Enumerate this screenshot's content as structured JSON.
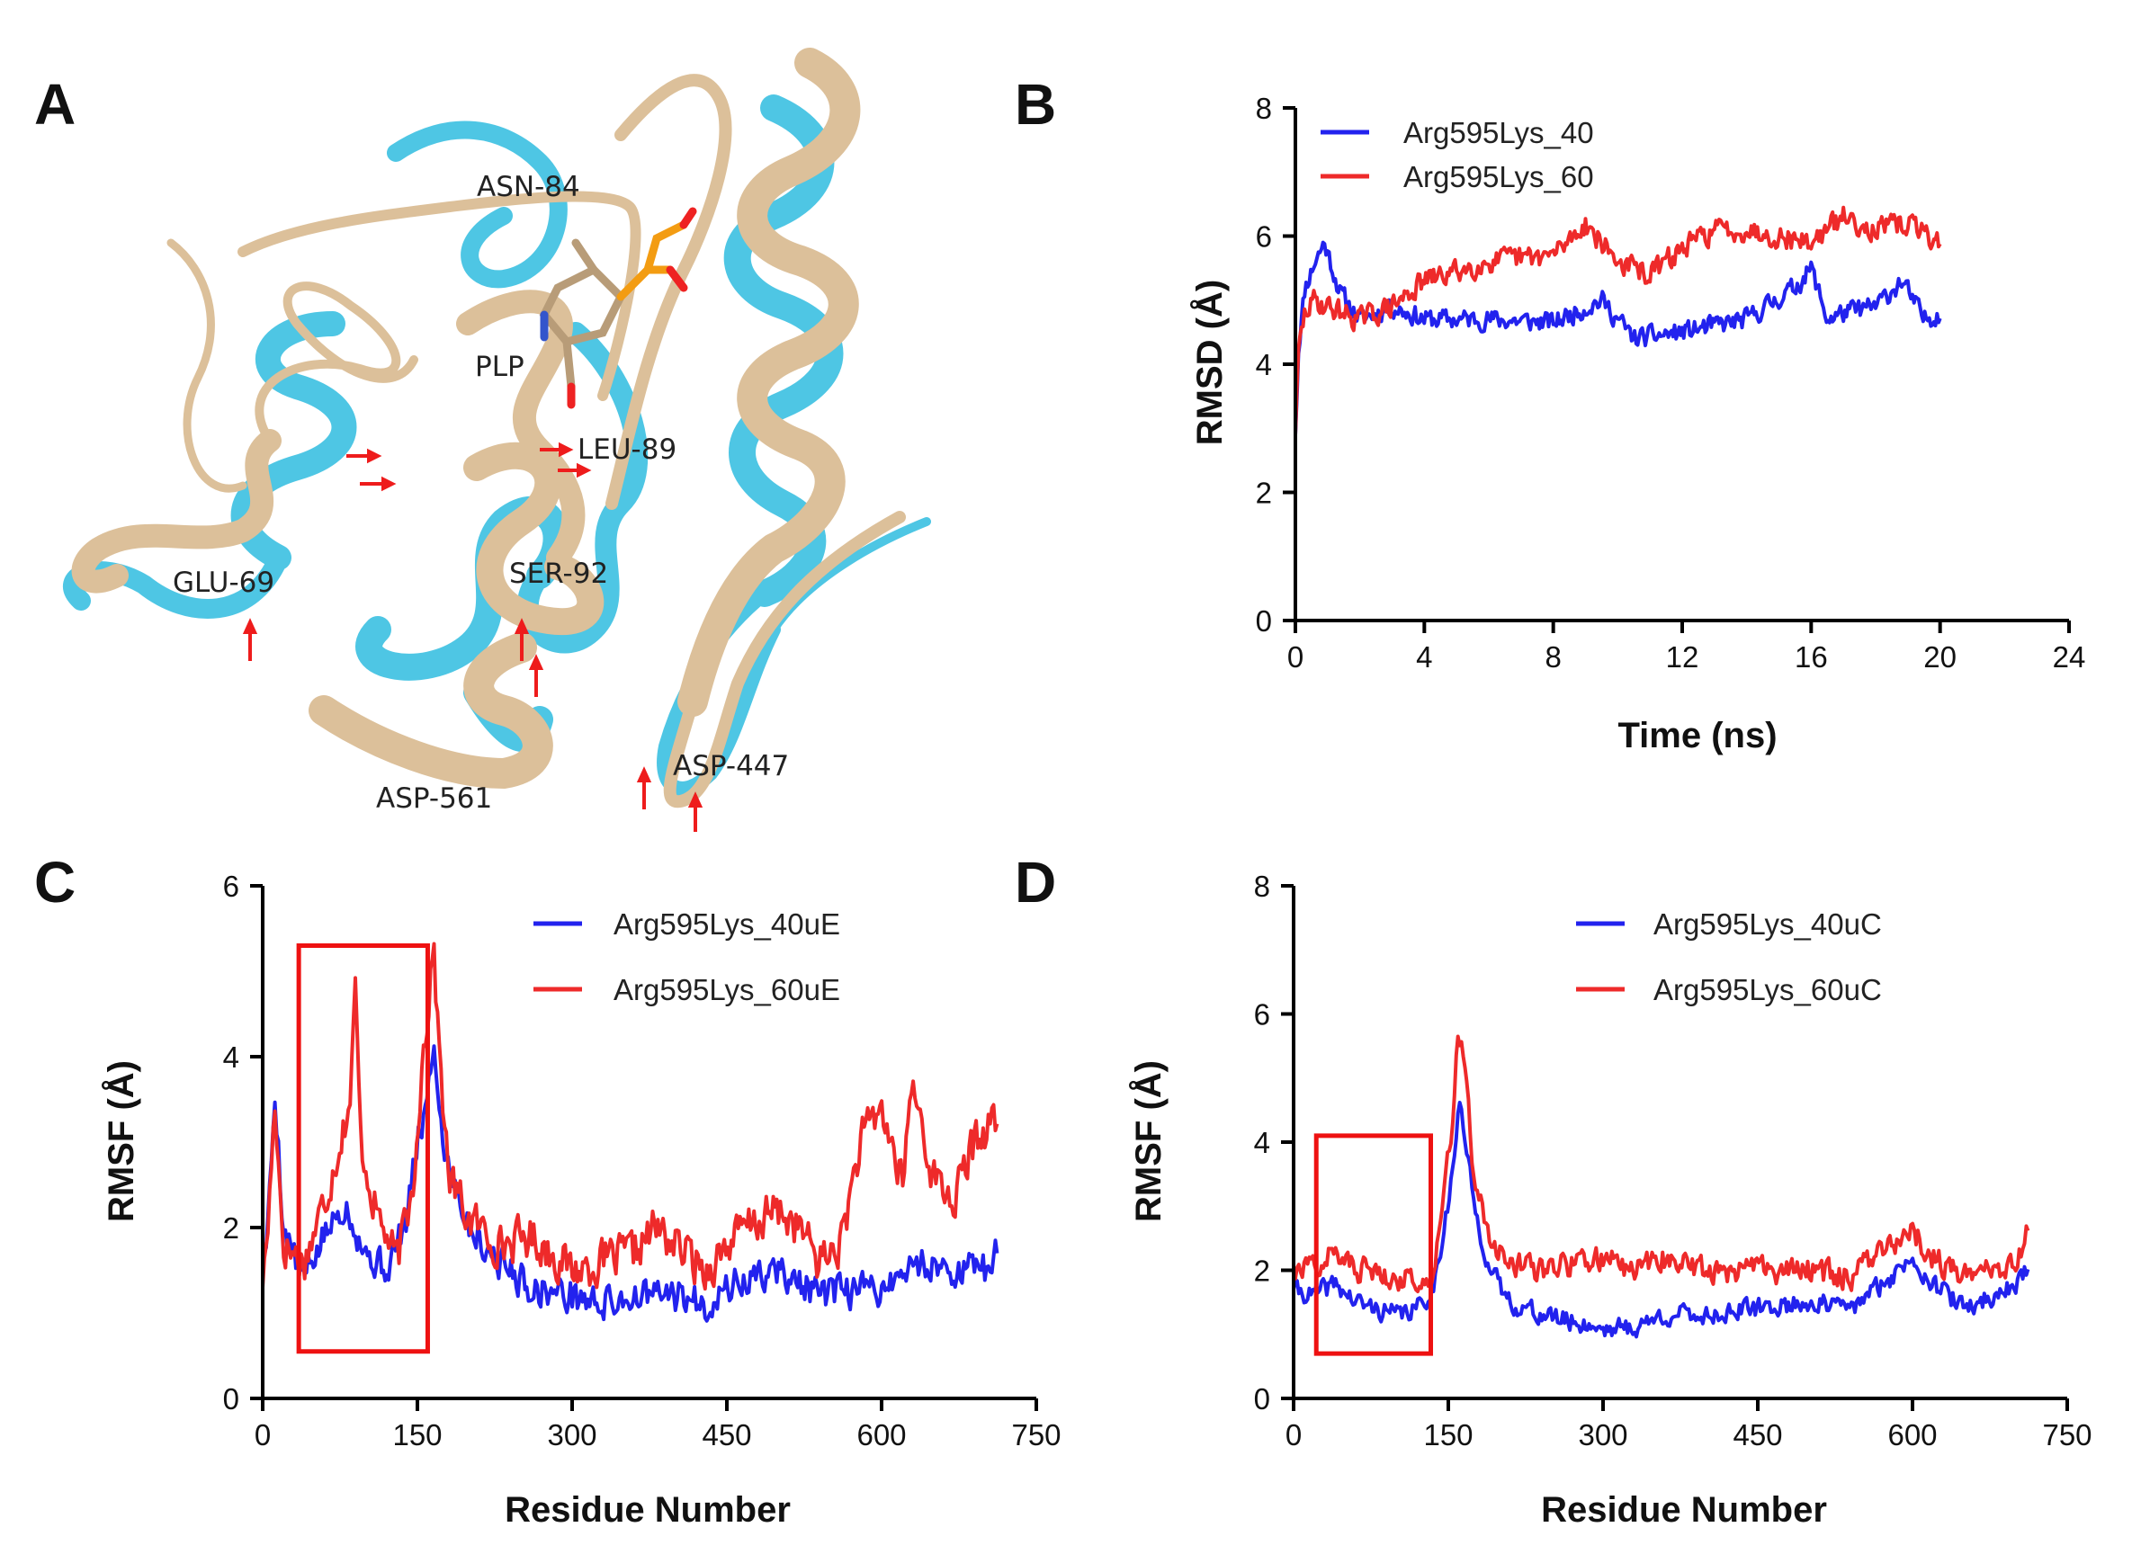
{
  "panels": {
    "A": {
      "label": "A",
      "residues": [
        "ASN-84",
        "PLP",
        "LEU-89",
        "GLU-69",
        "SER-92",
        "ASP-561",
        "ASP-447"
      ],
      "colors": {
        "structure_1": "#dcc09a",
        "structure_2": "#4ec6e4",
        "arrow": "#ee1c1c",
        "ligand": "#f39c12"
      }
    },
    "B": {
      "label": "B"
    },
    "C": {
      "label": "C"
    },
    "D": {
      "label": "D"
    }
  },
  "colors": {
    "blue": "#2222ee",
    "red": "#ee2a2a",
    "box": "#ee1111"
  },
  "chart_data": [
    {
      "id": "B",
      "type": "line",
      "xlabel": "Time (ns)",
      "ylabel": "RMSD (Å)",
      "xlim": [
        0,
        24
      ],
      "ylim": [
        0,
        8
      ],
      "xticks": [
        0,
        4,
        8,
        12,
        16,
        20,
        24
      ],
      "yticks": [
        0,
        2,
        4,
        6,
        8
      ],
      "series": [
        {
          "name": "Arg595Lys_40",
          "color": "#2222ee",
          "noise": 0.22,
          "seed": 11,
          "x": [
            0,
            0.1,
            0.3,
            0.6,
            0.9,
            1.4,
            2,
            3,
            4,
            6,
            8,
            9.5,
            10.5,
            12,
            14,
            15.5,
            16,
            16.5,
            17,
            18,
            18.8,
            19.5,
            20
          ],
          "y": [
            2.9,
            4.3,
            5.2,
            5.6,
            5.9,
            5.1,
            4.7,
            4.9,
            4.7,
            4.7,
            4.65,
            5.0,
            4.4,
            4.5,
            4.7,
            5.2,
            5.5,
            4.7,
            4.8,
            4.9,
            5.3,
            4.7,
            4.8
          ]
        },
        {
          "name": "Arg595Lys_60",
          "color": "#ee2a2a",
          "noise": 0.25,
          "seed": 29,
          "x": [
            0,
            0.1,
            0.3,
            0.6,
            1,
            2,
            3,
            4,
            6,
            8,
            9,
            10,
            11,
            12,
            13,
            14,
            16,
            17,
            18,
            19,
            20
          ],
          "y": [
            2.9,
            4.2,
            4.8,
            5.0,
            4.9,
            4.7,
            4.9,
            5.3,
            5.6,
            5.7,
            6.2,
            5.6,
            5.4,
            5.8,
            6.1,
            6.1,
            5.9,
            6.3,
            6.1,
            6.2,
            5.9
          ]
        }
      ]
    },
    {
      "id": "C",
      "type": "line",
      "xlabel": "Residue Number",
      "ylabel": "RMSF  (Å)",
      "xlim": [
        0,
        750
      ],
      "ylim": [
        0,
        6
      ],
      "xticks": [
        0,
        150,
        300,
        450,
        600,
        750
      ],
      "yticks": [
        0,
        2,
        4,
        6
      ],
      "highlight_box": {
        "x": [
          35,
          160
        ],
        "y": [
          0.55,
          5.3
        ]
      },
      "series": [
        {
          "name": "Arg595Lys_40uE",
          "color": "#2222ee",
          "noise": 0.28,
          "seed": 5,
          "x": [
            0,
            5,
            12,
            20,
            40,
            60,
            80,
            100,
            120,
            140,
            150,
            160,
            165,
            175,
            200,
            230,
            260,
            300,
            330,
            360,
            400,
            430,
            450,
            500,
            540,
            600,
            640,
            670,
            700,
            712
          ],
          "y": [
            1.5,
            2.0,
            3.6,
            2.0,
            1.4,
            1.9,
            2.3,
            1.7,
            1.5,
            2.1,
            3.0,
            3.5,
            4.2,
            3.0,
            2.0,
            1.6,
            1.3,
            1.2,
            1.1,
            1.2,
            1.2,
            1.1,
            1.3,
            1.5,
            1.2,
            1.3,
            1.6,
            1.5,
            1.5,
            1.7
          ]
        },
        {
          "name": "Arg595Lys_60uE",
          "color": "#ee2a2a",
          "noise": 0.35,
          "seed": 17,
          "x": [
            0,
            5,
            12,
            20,
            40,
            60,
            85,
            90,
            95,
            110,
            130,
            145,
            155,
            160,
            165,
            170,
            180,
            200,
            230,
            260,
            300,
            330,
            360,
            380,
            400,
            430,
            450,
            470,
            500,
            520,
            540,
            560,
            580,
            600,
            620,
            630,
            650,
            670,
            690,
            712
          ],
          "y": [
            1.3,
            2.0,
            3.5,
            1.8,
            1.6,
            2.3,
            3.5,
            4.8,
            3.0,
            2.2,
            1.6,
            2.4,
            4.0,
            4.5,
            5.4,
            4.3,
            2.6,
            2.1,
            1.8,
            1.9,
            1.5,
            1.6,
            1.7,
            2.0,
            1.8,
            1.5,
            1.8,
            2.0,
            2.2,
            2.0,
            1.6,
            1.8,
            3.0,
            3.4,
            2.5,
            3.7,
            2.6,
            2.3,
            3.0,
            3.3
          ]
        }
      ]
    },
    {
      "id": "D",
      "type": "line",
      "xlabel": "Residue Number",
      "ylabel": "RMSF  (Å)",
      "xlim": [
        0,
        750
      ],
      "ylim": [
        0,
        8
      ],
      "xticks": [
        0,
        150,
        300,
        450,
        600,
        750
      ],
      "yticks": [
        0,
        2,
        4,
        6,
        8
      ],
      "highlight_box": {
        "x": [
          22,
          133
        ],
        "y": [
          0.7,
          4.1
        ]
      },
      "series": [
        {
          "name": "Arg595Lys_40uC",
          "color": "#2222ee",
          "noise": 0.22,
          "seed": 41,
          "x": [
            0,
            20,
            40,
            60,
            80,
            100,
            120,
            135,
            145,
            155,
            160,
            165,
            175,
            190,
            210,
            240,
            270,
            300,
            330,
            360,
            400,
            450,
            500,
            540,
            580,
            600,
            620,
            650,
            680,
            700,
            712
          ],
          "y": [
            1.7,
            1.6,
            1.8,
            1.5,
            1.4,
            1.3,
            1.4,
            1.7,
            2.6,
            3.6,
            4.6,
            4.2,
            3.0,
            2.0,
            1.5,
            1.3,
            1.2,
            1.1,
            1.1,
            1.3,
            1.3,
            1.4,
            1.5,
            1.4,
            1.9,
            2.2,
            1.8,
            1.4,
            1.6,
            1.8,
            2.0
          ]
        },
        {
          "name": "Arg595Lys_60uC",
          "color": "#ee2a2a",
          "noise": 0.28,
          "seed": 57,
          "x": [
            0,
            20,
            40,
            60,
            80,
            100,
            120,
            135,
            145,
            155,
            160,
            165,
            175,
            190,
            210,
            240,
            270,
            300,
            330,
            360,
            400,
            450,
            500,
            540,
            580,
            600,
            620,
            650,
            680,
            700,
            712
          ],
          "y": [
            1.9,
            2.1,
            2.3,
            2.0,
            2.0,
            1.9,
            1.8,
            2.0,
            3.2,
            4.5,
            5.8,
            5.2,
            3.5,
            2.4,
            2.1,
            2.0,
            2.1,
            2.2,
            2.0,
            2.2,
            2.0,
            2.0,
            2.0,
            1.9,
            2.4,
            2.6,
            2.2,
            1.9,
            2.0,
            2.2,
            2.6
          ]
        }
      ]
    }
  ]
}
